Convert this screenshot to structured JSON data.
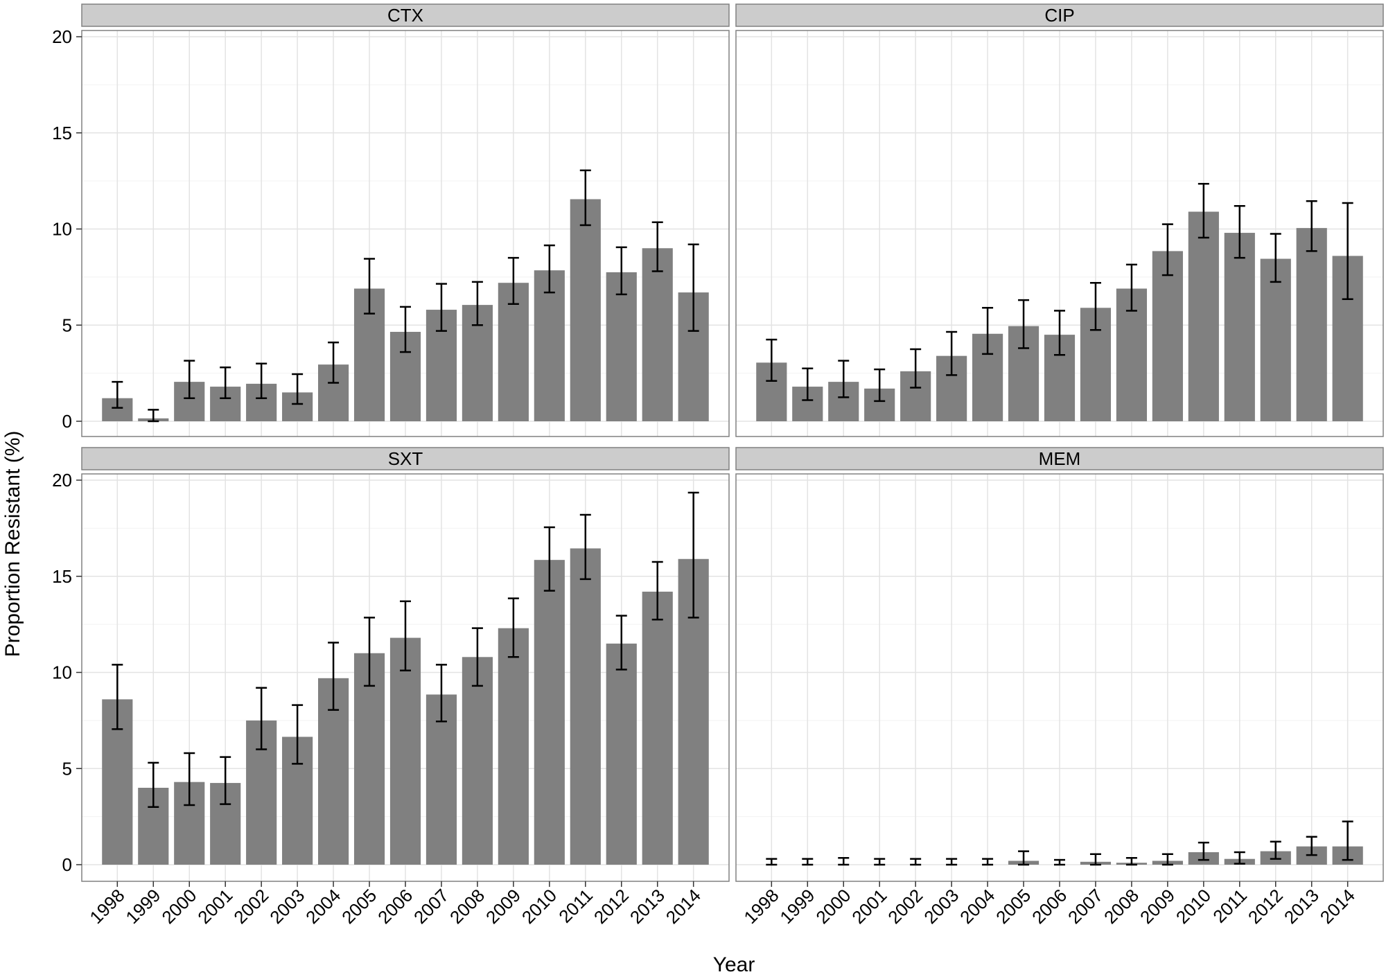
{
  "figure": {
    "ylabel": "Proportion Resistant (%)",
    "xlabel": "Year"
  },
  "chart_data": [
    {
      "type": "bar",
      "title": "CTX",
      "categories": [
        "1998",
        "1999",
        "2000",
        "2001",
        "2002",
        "2003",
        "2004",
        "2005",
        "2006",
        "2007",
        "2008",
        "2009",
        "2010",
        "2011",
        "2012",
        "2013",
        "2014"
      ],
      "values": [
        1.2,
        0.15,
        2.05,
        1.8,
        1.95,
        1.5,
        2.95,
        6.9,
        4.65,
        5.8,
        6.05,
        7.2,
        7.85,
        11.55,
        7.75,
        9.0,
        6.7
      ],
      "error_low": [
        0.7,
        0.0,
        1.2,
        1.2,
        1.2,
        0.9,
        2.0,
        5.6,
        3.6,
        4.7,
        5.0,
        6.1,
        6.7,
        10.2,
        6.6,
        7.8,
        4.7
      ],
      "error_high": [
        2.05,
        0.6,
        3.15,
        2.8,
        3.0,
        2.45,
        4.1,
        8.45,
        5.95,
        7.15,
        7.25,
        8.5,
        9.15,
        13.05,
        9.05,
        10.35,
        9.2
      ],
      "ylim": [
        0,
        20
      ],
      "yticks": [
        0,
        5,
        10,
        15,
        20
      ],
      "bar_color": "#808080",
      "grid": true
    },
    {
      "type": "bar",
      "title": "CIP",
      "categories": [
        "1998",
        "1999",
        "2000",
        "2001",
        "2002",
        "2003",
        "2004",
        "2005",
        "2006",
        "2007",
        "2008",
        "2009",
        "2010",
        "2011",
        "2012",
        "2013",
        "2014"
      ],
      "values": [
        3.05,
        1.8,
        2.05,
        1.7,
        2.6,
        3.4,
        4.55,
        4.95,
        4.5,
        5.9,
        6.9,
        8.85,
        10.9,
        9.8,
        8.45,
        10.05,
        8.6
      ],
      "error_low": [
        2.1,
        1.1,
        1.25,
        1.05,
        1.75,
        2.4,
        3.5,
        3.8,
        3.45,
        4.75,
        5.75,
        7.6,
        9.55,
        8.5,
        7.25,
        8.85,
        6.35
      ],
      "error_high": [
        4.25,
        2.75,
        3.15,
        2.7,
        3.75,
        4.65,
        5.9,
        6.3,
        5.75,
        7.2,
        8.15,
        10.25,
        12.35,
        11.2,
        9.75,
        11.45,
        11.35
      ],
      "ylim": [
        0,
        20
      ],
      "yticks": [
        0,
        5,
        10,
        15,
        20
      ],
      "bar_color": "#808080",
      "grid": true
    },
    {
      "type": "bar",
      "title": "SXT",
      "categories": [
        "1998",
        "1999",
        "2000",
        "2001",
        "2002",
        "2003",
        "2004",
        "2005",
        "2006",
        "2007",
        "2008",
        "2009",
        "2010",
        "2011",
        "2012",
        "2013",
        "2014"
      ],
      "values": [
        8.6,
        4.0,
        4.3,
        4.25,
        7.5,
        6.65,
        9.7,
        11.0,
        11.8,
        8.85,
        10.8,
        12.3,
        15.85,
        16.45,
        11.5,
        14.2,
        15.9
      ],
      "error_low": [
        7.05,
        3.0,
        3.1,
        3.15,
        6.0,
        5.25,
        8.05,
        9.3,
        10.1,
        7.45,
        9.3,
        10.8,
        14.25,
        14.85,
        10.15,
        12.75,
        12.85
      ],
      "error_high": [
        10.4,
        5.3,
        5.8,
        5.6,
        9.2,
        8.3,
        11.55,
        12.85,
        13.7,
        10.4,
        12.3,
        13.85,
        17.55,
        18.2,
        12.95,
        15.75,
        19.35
      ],
      "ylim": [
        0,
        20
      ],
      "yticks": [
        0,
        5,
        10,
        15,
        20
      ],
      "bar_color": "#808080",
      "grid": true
    },
    {
      "type": "bar",
      "title": "MEM",
      "categories": [
        "1998",
        "1999",
        "2000",
        "2001",
        "2002",
        "2003",
        "2004",
        "2005",
        "2006",
        "2007",
        "2008",
        "2009",
        "2010",
        "2011",
        "2012",
        "2013",
        "2014"
      ],
      "values": [
        0.0,
        0.0,
        0.0,
        0.0,
        0.0,
        0.0,
        0.0,
        0.2,
        0.0,
        0.15,
        0.1,
        0.2,
        0.65,
        0.3,
        0.7,
        0.95,
        0.95
      ],
      "error_low": [
        0.0,
        0.0,
        0.0,
        0.0,
        0.0,
        0.0,
        0.0,
        0.0,
        0.0,
        0.0,
        0.0,
        0.0,
        0.25,
        0.05,
        0.3,
        0.5,
        0.25
      ],
      "error_high": [
        0.3,
        0.3,
        0.35,
        0.3,
        0.3,
        0.3,
        0.3,
        0.7,
        0.25,
        0.55,
        0.35,
        0.55,
        1.15,
        0.65,
        1.2,
        1.45,
        2.25
      ],
      "ylim": [
        0,
        20
      ],
      "yticks": [
        0,
        5,
        10,
        15,
        20
      ],
      "bar_color": "#808080",
      "grid": true
    }
  ]
}
